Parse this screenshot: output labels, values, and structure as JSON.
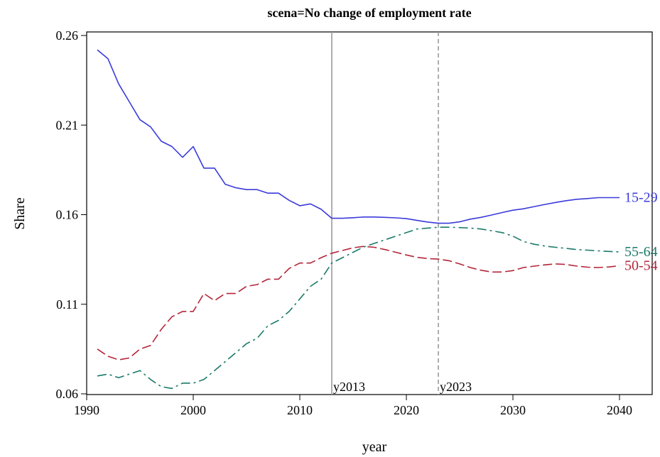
{
  "chart_data": {
    "type": "line",
    "title": "scena=No change of employment rate",
    "xlabel": "year",
    "ylabel": "Share",
    "xlim": [
      1990,
      2040
    ],
    "ylim": [
      0.06,
      0.26
    ],
    "xticks": [
      "1990",
      "2000",
      "2010",
      "2020",
      "2030",
      "2040"
    ],
    "yticks": [
      "0.06",
      "0.11",
      "0.16",
      "0.21",
      "0.26"
    ],
    "grid": false,
    "legend": "end-of-line labels",
    "reference_lines": [
      {
        "x": 2013,
        "label": "y2013",
        "style": "solid"
      },
      {
        "x": 2023,
        "label": "y2023",
        "style": "dashed"
      }
    ],
    "series": [
      {
        "name": "15-29",
        "color": "#3b3bdb",
        "dash": "solid",
        "x": [
          1991,
          1992,
          1993,
          1994,
          1995,
          1996,
          1997,
          1998,
          1999,
          2000,
          2001,
          2002,
          2003,
          2004,
          2005,
          2006,
          2007,
          2008,
          2009,
          2010,
          2011,
          2012,
          2013,
          2014,
          2015,
          2016,
          2017,
          2018,
          2019,
          2020,
          2021,
          2022,
          2023,
          2024,
          2025,
          2026,
          2027,
          2028,
          2029,
          2030,
          2031,
          2032,
          2033,
          2034,
          2035,
          2036,
          2037,
          2038,
          2039,
          2040
        ],
        "y": [
          0.252,
          0.247,
          0.233,
          0.223,
          0.213,
          0.209,
          0.201,
          0.198,
          0.192,
          0.198,
          0.186,
          0.186,
          0.177,
          0.175,
          0.174,
          0.174,
          0.172,
          0.172,
          0.168,
          0.165,
          0.166,
          0.163,
          0.158,
          0.158,
          0.1583,
          0.1587,
          0.1587,
          0.1585,
          0.1582,
          0.1578,
          0.1568,
          0.1559,
          0.1552,
          0.1552,
          0.156,
          0.1575,
          0.1585,
          0.1598,
          0.1612,
          0.1625,
          0.1633,
          0.1645,
          0.1657,
          0.1668,
          0.1678,
          0.1686,
          0.169,
          0.1695,
          0.1695,
          0.1695
        ]
      },
      {
        "name": "55-64",
        "color": "#1b7a6a",
        "dash": "dashdot",
        "x": [
          1991,
          1992,
          1993,
          1994,
          1995,
          1996,
          1997,
          1998,
          1999,
          2000,
          2001,
          2002,
          2003,
          2004,
          2005,
          2006,
          2007,
          2008,
          2009,
          2010,
          2011,
          2012,
          2013,
          2014,
          2015,
          2016,
          2017,
          2018,
          2019,
          2020,
          2021,
          2022,
          2023,
          2024,
          2025,
          2026,
          2027,
          2028,
          2029,
          2030,
          2031,
          2032,
          2033,
          2034,
          2035,
          2036,
          2037,
          2038,
          2039,
          2040
        ],
        "y": [
          0.07,
          0.071,
          0.069,
          0.071,
          0.073,
          0.068,
          0.064,
          0.063,
          0.066,
          0.066,
          0.068,
          0.073,
          0.078,
          0.083,
          0.088,
          0.091,
          0.098,
          0.101,
          0.106,
          0.113,
          0.12,
          0.124,
          0.133,
          0.136,
          0.139,
          0.142,
          0.144,
          0.146,
          0.148,
          0.15,
          0.152,
          0.1525,
          0.153,
          0.153,
          0.1528,
          0.1525,
          0.152,
          0.151,
          0.15,
          0.148,
          0.145,
          0.1435,
          0.1425,
          0.1418,
          0.1412,
          0.1405,
          0.1402,
          0.1398,
          0.1395,
          0.1392
        ]
      },
      {
        "name": "50-54",
        "color": "#b3263a",
        "dash": "dashed",
        "x": [
          1991,
          1992,
          1993,
          1994,
          1995,
          1996,
          1997,
          1998,
          1999,
          2000,
          2001,
          2002,
          2003,
          2004,
          2005,
          2006,
          2007,
          2008,
          2009,
          2010,
          2011,
          2012,
          2013,
          2014,
          2015,
          2016,
          2017,
          2018,
          2019,
          2020,
          2021,
          2022,
          2023,
          2024,
          2025,
          2026,
          2027,
          2028,
          2029,
          2030,
          2031,
          2032,
          2033,
          2034,
          2035,
          2036,
          2037,
          2038,
          2039,
          2040
        ],
        "y": [
          0.085,
          0.081,
          0.079,
          0.08,
          0.085,
          0.087,
          0.096,
          0.103,
          0.106,
          0.106,
          0.116,
          0.112,
          0.116,
          0.116,
          0.12,
          0.121,
          0.124,
          0.124,
          0.13,
          0.133,
          0.133,
          0.136,
          0.1385,
          0.14,
          0.1415,
          0.1423,
          0.1418,
          0.1405,
          0.139,
          0.1375,
          0.1362,
          0.1355,
          0.1352,
          0.1343,
          0.1325,
          0.1305,
          0.129,
          0.128,
          0.128,
          0.1288,
          0.1305,
          0.1313,
          0.132,
          0.1325,
          0.1322,
          0.1313,
          0.1307,
          0.1305,
          0.1308,
          0.1315
        ]
      }
    ]
  }
}
